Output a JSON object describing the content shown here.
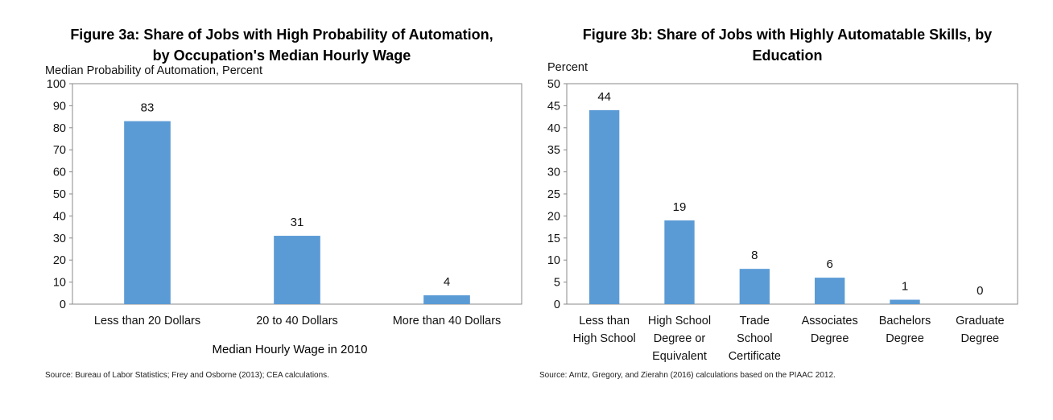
{
  "chart_data": [
    {
      "type": "bar",
      "title": "Figure 3a: Share of Jobs with High Probability of Automation,\nby Occupation's Median Hourly Wage",
      "ylabel": "Median Probability of Automation, Percent",
      "xlabel": "Median Hourly Wage in 2010",
      "categories": [
        [
          "Less than 20 Dollars"
        ],
        [
          "20 to 40 Dollars"
        ],
        [
          "More than 40 Dollars"
        ]
      ],
      "values": [
        83,
        31,
        4
      ],
      "ylim": [
        0,
        100
      ],
      "yticks": [
        0,
        10,
        20,
        30,
        40,
        50,
        60,
        70,
        80,
        90,
        100
      ],
      "bar_color": "#5b9bd5",
      "source": "Source: Bureau of Labor Statistics; Frey and Osborne (2013); CEA calculations."
    },
    {
      "type": "bar",
      "title": "Figure 3b: Share of Jobs with Highly Automatable Skills, by\nEducation",
      "ylabel": "Percent",
      "xlabel": "",
      "categories": [
        [
          "Less than",
          "High School"
        ],
        [
          "High School",
          "Degree or",
          "Equivalent"
        ],
        [
          "Trade",
          "School",
          "Certificate"
        ],
        [
          "Associates",
          "Degree"
        ],
        [
          "Bachelors",
          "Degree"
        ],
        [
          "Graduate",
          "Degree"
        ]
      ],
      "values": [
        44,
        19,
        8,
        6,
        1,
        0
      ],
      "ylim": [
        0,
        50
      ],
      "yticks": [
        0,
        5,
        10,
        15,
        20,
        25,
        30,
        35,
        40,
        45,
        50
      ],
      "bar_color": "#5b9bd5",
      "source": "Source: Arntz, Gregory, and Zierahn (2016) calculations based on the PIAAC 2012."
    }
  ]
}
